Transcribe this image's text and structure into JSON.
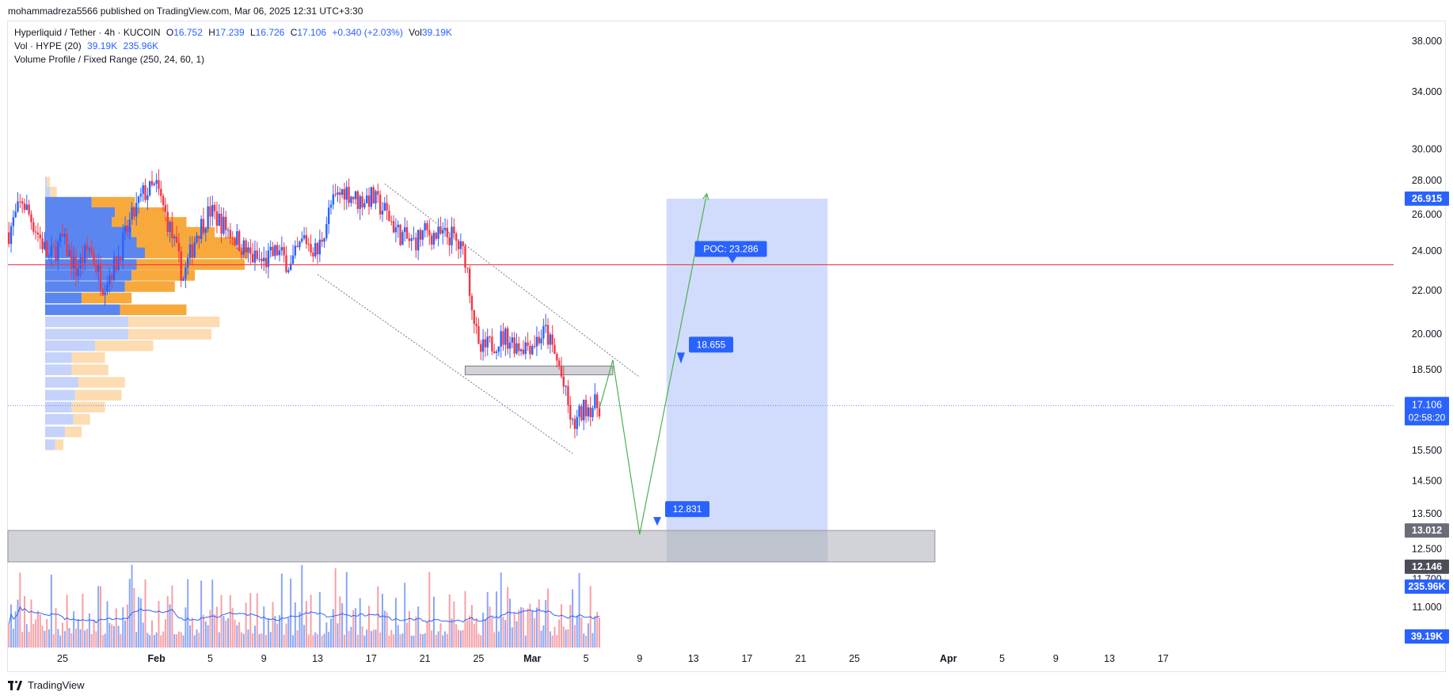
{
  "publisher": "mohammadreza5566 published on TradingView.com, Mar 06, 2025 12:31 UTC+3:30",
  "legend": {
    "symbol": "Hyperliquid / Tether · 4h · KUCOIN",
    "o_label": "O",
    "o": "16.752",
    "h_label": "H",
    "h": "17.239",
    "l_label": "L",
    "l": "16.726",
    "c_label": "C",
    "c": "17.106",
    "change": "+0.340 (+2.03%)",
    "vol_label": "Vol",
    "vol": "39.19K",
    "volume_title": "Vol · HYPE (20)",
    "volume_value": "39.19K",
    "volume_ma": "235.96K",
    "profile_title": "Volume Profile / Fixed Range (250, 24, 60, 1)"
  },
  "footer": {
    "brand": "TradingView"
  },
  "colors": {
    "up": "#2962ff",
    "down": "#f23645",
    "poc": "#f23645",
    "target_box": "#c9d6fb",
    "support_zone": "#b2b5be",
    "projection": "#4caf50"
  },
  "chart_data": {
    "type": "candlestick",
    "symbol": "HYPE/USDT",
    "timeframe": "4h",
    "scale": "log",
    "ylim": [
      10.4,
      40.5
    ],
    "price_ticks": [
      "38.000",
      "34.000",
      "30.000",
      "28.000",
      "26.000",
      "24.000",
      "22.000",
      "20.000",
      "18.500",
      "15.500",
      "14.500",
      "13.500",
      "12.500",
      "11.700",
      "11.000"
    ],
    "x_ticks": [
      {
        "label": "25",
        "date": "2025-01-25",
        "bold": false
      },
      {
        "label": "Feb",
        "date": "2025-02-01",
        "bold": true
      },
      {
        "label": "5",
        "date": "2025-02-05",
        "bold": false
      },
      {
        "label": "9",
        "date": "2025-02-09",
        "bold": false
      },
      {
        "label": "13",
        "date": "2025-02-13",
        "bold": false
      },
      {
        "label": "17",
        "date": "2025-02-17",
        "bold": false
      },
      {
        "label": "21",
        "date": "2025-02-21",
        "bold": false
      },
      {
        "label": "25",
        "date": "2025-02-25",
        "bold": false
      },
      {
        "label": "Mar",
        "date": "2025-03-01",
        "bold": true
      },
      {
        "label": "5",
        "date": "2025-03-05",
        "bold": false
      },
      {
        "label": "9",
        "date": "2025-03-09",
        "bold": false
      },
      {
        "label": "13",
        "date": "2025-03-13",
        "bold": false
      },
      {
        "label": "17",
        "date": "2025-03-17",
        "bold": false
      },
      {
        "label": "21",
        "date": "2025-03-21",
        "bold": false
      },
      {
        "label": "25",
        "date": "2025-03-25",
        "bold": false
      },
      {
        "label": "Apr",
        "date": "2025-04-01",
        "bold": true
      },
      {
        "label": "5",
        "date": "2025-04-05",
        "bold": false
      },
      {
        "label": "9",
        "date": "2025-04-09",
        "bold": false
      },
      {
        "label": "13",
        "date": "2025-04-13",
        "bold": false
      },
      {
        "label": "17",
        "date": "2025-04-17",
        "bold": false
      }
    ],
    "price_path": [
      [
        "2025-01-21",
        25.0
      ],
      [
        "2025-01-22",
        26.8
      ],
      [
        "2025-01-23",
        25.2
      ],
      [
        "2025-01-24",
        23.6
      ],
      [
        "2025-01-25",
        24.6
      ],
      [
        "2025-01-26",
        23.0
      ],
      [
        "2025-01-27",
        24.2
      ],
      [
        "2025-01-28",
        22.3
      ],
      [
        "2025-01-29",
        23.4
      ],
      [
        "2025-01-30",
        25.5
      ],
      [
        "2025-01-31",
        27.2
      ],
      [
        "2025-02-01",
        27.6
      ],
      [
        "2025-02-02",
        25.2
      ],
      [
        "2025-02-03",
        22.6
      ],
      [
        "2025-02-04",
        25.0
      ],
      [
        "2025-02-05",
        26.2
      ],
      [
        "2025-02-06",
        25.4
      ],
      [
        "2025-02-07",
        24.6
      ],
      [
        "2025-02-08",
        23.7
      ],
      [
        "2025-02-09",
        23.4
      ],
      [
        "2025-02-10",
        24.0
      ],
      [
        "2025-02-11",
        23.2
      ],
      [
        "2025-02-12",
        24.7
      ],
      [
        "2025-02-13",
        23.9
      ],
      [
        "2025-02-14",
        26.5
      ],
      [
        "2025-02-15",
        27.5
      ],
      [
        "2025-02-16",
        26.8
      ],
      [
        "2025-02-17",
        27.0
      ],
      [
        "2025-02-18",
        26.2
      ],
      [
        "2025-02-19",
        25.0
      ],
      [
        "2025-02-20",
        24.4
      ],
      [
        "2025-02-21",
        25.0
      ],
      [
        "2025-02-22",
        24.8
      ],
      [
        "2025-02-23",
        24.8
      ],
      [
        "2025-02-24",
        23.7
      ],
      [
        "2025-02-25",
        19.2
      ],
      [
        "2025-02-26",
        19.6
      ],
      [
        "2025-02-27",
        19.9
      ],
      [
        "2025-02-28",
        19.5
      ],
      [
        "2025-03-01",
        19.6
      ],
      [
        "2025-03-02",
        20.1
      ],
      [
        "2025-03-03",
        18.6
      ],
      [
        "2025-03-04",
        16.3
      ],
      [
        "2025-03-05",
        17.1
      ],
      [
        "2025-03-06",
        17.106
      ]
    ],
    "volume": {
      "series": [
        {
          "name": "Vol · HYPE (20)",
          "last": "39.19K"
        },
        {
          "name": "MA",
          "last": "235.96K"
        }
      ]
    },
    "volume_profile": {
      "title": "Volume Profile / Fixed Range (250, 24, 60, 1)",
      "poc": 23.286,
      "poc_label": "POC: 23.286",
      "rows": [
        {
          "price": 27.9,
          "buy": 0.01,
          "sell": 0.02
        },
        {
          "price": 27.3,
          "buy": 0.03,
          "sell": 0.04
        },
        {
          "price": 26.7,
          "buy": 0.28,
          "sell": 0.26
        },
        {
          "price": 26.1,
          "buy": 0.42,
          "sell": 0.3
        },
        {
          "price": 25.55,
          "buy": 0.4,
          "sell": 0.45
        },
        {
          "price": 25.0,
          "buy": 0.52,
          "sell": 0.5
        },
        {
          "price": 24.45,
          "buy": 0.55,
          "sell": 0.6
        },
        {
          "price": 23.9,
          "buy": 0.6,
          "sell": 0.62
        },
        {
          "price": 23.3,
          "buy": 0.55,
          "sell": 0.65
        },
        {
          "price": 22.75,
          "buy": 0.52,
          "sell": 0.38
        },
        {
          "price": 22.2,
          "buy": 0.48,
          "sell": 0.3
        },
        {
          "price": 21.65,
          "buy": 0.22,
          "sell": 0.3
        },
        {
          "price": 21.1,
          "buy": 0.45,
          "sell": 0.4
        },
        {
          "price": 20.55,
          "buy": 0.5,
          "sell": 0.55
        },
        {
          "price": 20.0,
          "buy": 0.5,
          "sell": 0.5
        },
        {
          "price": 19.5,
          "buy": 0.3,
          "sell": 0.35
        },
        {
          "price": 19.0,
          "buy": 0.16,
          "sell": 0.2
        },
        {
          "price": 18.5,
          "buy": 0.16,
          "sell": 0.22
        },
        {
          "price": 18.0,
          "buy": 0.2,
          "sell": 0.28
        },
        {
          "price": 17.5,
          "buy": 0.18,
          "sell": 0.28
        },
        {
          "price": 17.05,
          "buy": 0.16,
          "sell": 0.2
        },
        {
          "price": 16.6,
          "buy": 0.17,
          "sell": 0.1
        },
        {
          "price": 16.15,
          "buy": 0.12,
          "sell": 0.1
        },
        {
          "price": 15.7,
          "buy": 0.06,
          "sell": 0.05
        }
      ]
    },
    "annotations": {
      "poc_line": 23.286,
      "resistance_zone": {
        "from": "2025-02-24",
        "to": "2025-03-07",
        "low": 18.3,
        "high": 18.655,
        "label": "18.655"
      },
      "support_zone": {
        "from": "2025-01-19",
        "to": "2025-03-31",
        "low": 12.146,
        "high": 13.012
      },
      "support_label": "12.831",
      "target_box": {
        "from": "2025-03-11",
        "to": "2025-03-23",
        "low": 12.146,
        "high": 26.915
      },
      "target_price": "26.915",
      "zone_top_price": "13.012",
      "zone_bottom_price": "12.146",
      "last_price": "17.106",
      "countdown": "02:58:20",
      "volume_ma_badge": "235.96K",
      "volume_badge": "39.19K",
      "channel_upper": [
        [
          "2025-02-18",
          27.8
        ],
        [
          "2025-03-09",
          18.2
        ]
      ],
      "channel_lower": [
        [
          "2025-02-13",
          22.8
        ],
        [
          "2025-03-04",
          15.4
        ]
      ],
      "projection_path": [
        [
          "2025-03-06",
          17.0
        ],
        [
          "2025-03-07",
          18.9
        ],
        [
          "2025-03-09",
          12.9
        ],
        [
          "2025-03-14",
          27.2
        ]
      ]
    }
  }
}
